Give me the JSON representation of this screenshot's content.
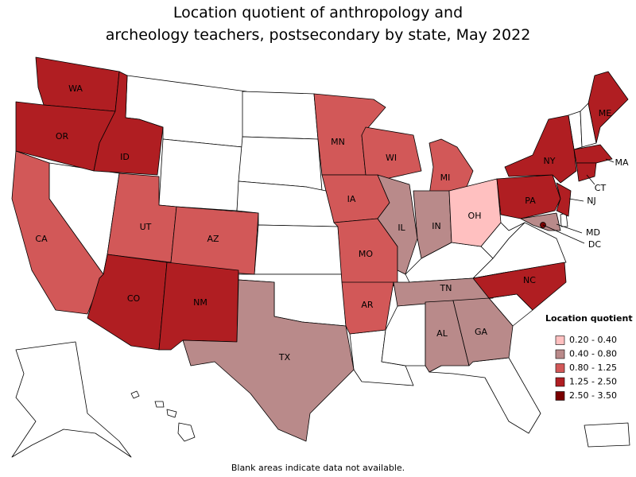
{
  "map": {
    "title": [
      "Location quotient of anthropology and",
      "archeology teachers, postsecondary by state, May 2022"
    ],
    "footnote": "Blank areas indicate data not available.",
    "legend": {
      "title": "Location quotient",
      "items": [
        {
          "label": "0.20 - 0.40",
          "color": "#ffc0c0"
        },
        {
          "label": "0.40 - 0.80",
          "color": "#b98a8a"
        },
        {
          "label": "0.80 - 1.25",
          "color": "#d25858"
        },
        {
          "label": "1.25 - 2.50",
          "color": "#b01e22"
        },
        {
          "label": "2.50 - 3.50",
          "color": "#7a0000"
        }
      ]
    },
    "states": [
      {
        "label": "WA",
        "class": 3
      },
      {
        "label": "OR",
        "class": 3
      },
      {
        "label": "ID",
        "class": 3
      },
      {
        "label": "CA",
        "class": 2
      },
      {
        "label": "UT",
        "class": 2
      },
      {
        "label": "AZ",
        "class": 2
      },
      {
        "label": "CO",
        "class": 3
      },
      {
        "label": "NM",
        "class": 3
      },
      {
        "label": "TX",
        "class": 1
      },
      {
        "label": "MN",
        "class": 2
      },
      {
        "label": "IA",
        "class": 2
      },
      {
        "label": "MO",
        "class": 2
      },
      {
        "label": "AR",
        "class": 2
      },
      {
        "label": "WI",
        "class": 2
      },
      {
        "label": "IL",
        "class": 1
      },
      {
        "label": "MI",
        "class": 2
      },
      {
        "label": "IN",
        "class": 1
      },
      {
        "label": "OH",
        "class": 0
      },
      {
        "label": "TN",
        "class": 1
      },
      {
        "label": "AL",
        "class": 1
      },
      {
        "label": "GA",
        "class": 1
      },
      {
        "label": "NC",
        "class": 3
      },
      {
        "label": "PA",
        "class": 3
      },
      {
        "label": "NY",
        "class": 3
      },
      {
        "label": "ME",
        "class": 3
      },
      {
        "label": "MA",
        "class": 3
      },
      {
        "label": "CT",
        "class": 3
      },
      {
        "label": "NJ",
        "class": 3
      },
      {
        "label": "MD",
        "class": 1
      },
      {
        "label": "DC",
        "class": 4
      }
    ]
  }
}
